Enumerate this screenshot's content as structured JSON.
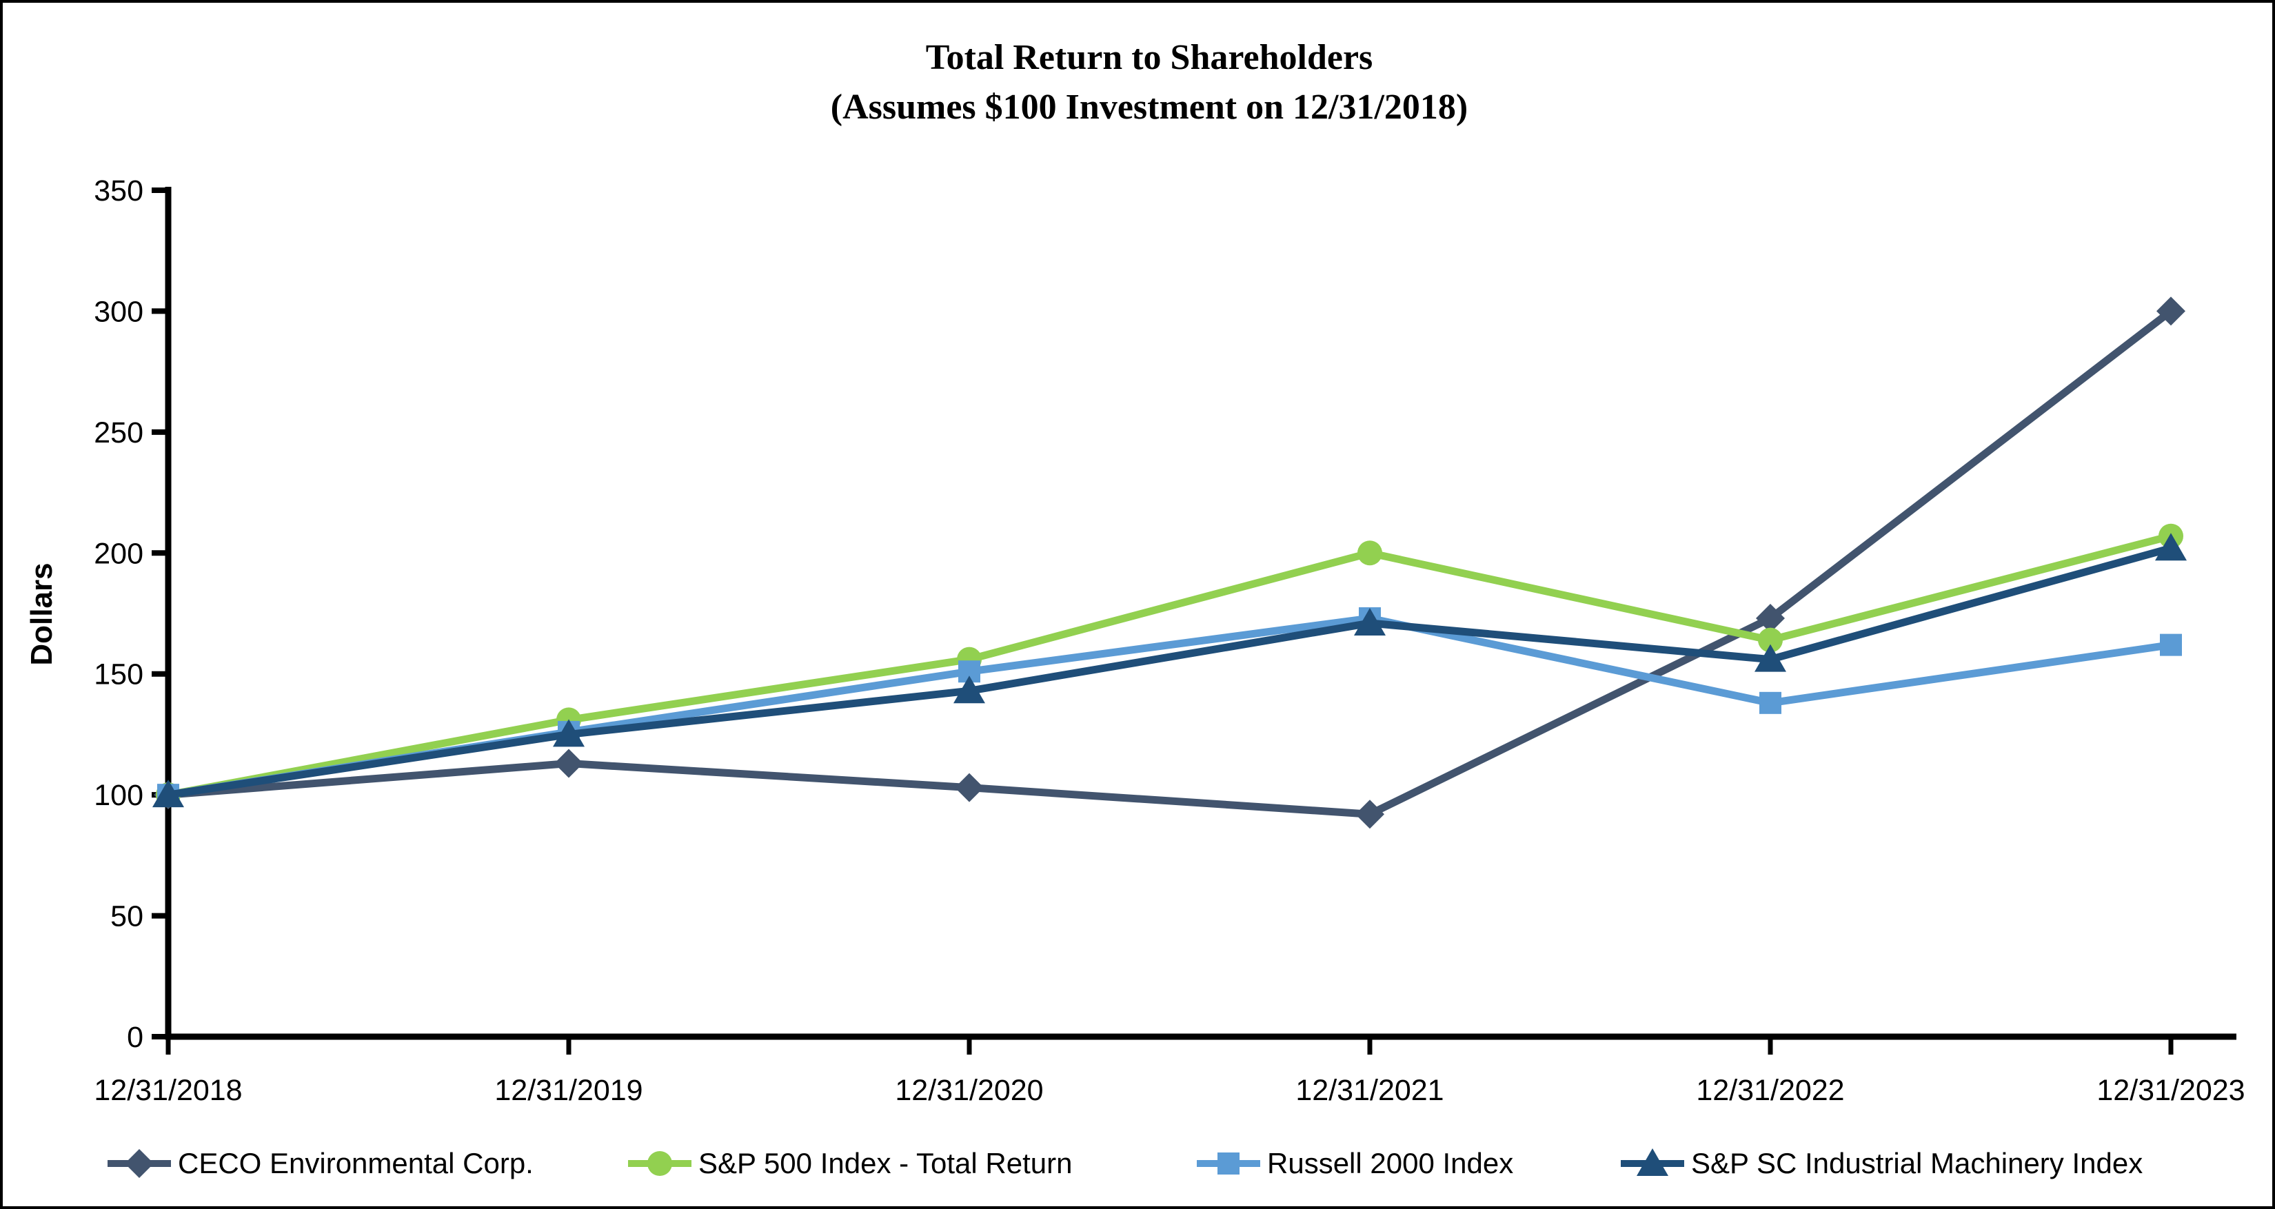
{
  "title": {
    "line1": "Total Return to Shareholders",
    "line2": "(Assumes $100 Investment on 12/31/2018)"
  },
  "chart_data": {
    "type": "line",
    "title": "Total Return to Shareholders (Assumes $100 Investment on 12/31/2018)",
    "xlabel": "",
    "ylabel": "Dollars",
    "ylim": [
      0,
      350
    ],
    "y_ticks": [
      0,
      50,
      100,
      150,
      200,
      250,
      300,
      350
    ],
    "grid": false,
    "legend_position": "bottom",
    "background_color": "#FFFFFF",
    "axis_color": "#000000",
    "categories": [
      "12/31/2018",
      "12/31/2019",
      "12/31/2020",
      "12/31/2021",
      "12/31/2022",
      "12/31/2023"
    ],
    "series": [
      {
        "name": "CECO Environmental Corp.",
        "color": "#42546E",
        "marker": "diamond",
        "values": [
          100,
          113,
          103,
          92,
          173,
          300
        ]
      },
      {
        "name": "S&P 500 Index - Total Return",
        "color": "#92D050",
        "marker": "circle",
        "values": [
          100,
          131,
          156,
          200,
          164,
          207
        ]
      },
      {
        "name": "Russell 2000 Index",
        "color": "#5B9BD5",
        "marker": "square",
        "values": [
          100,
          126,
          151,
          173,
          138,
          162
        ]
      },
      {
        "name": "S&P SC Industrial Machinery Index",
        "color": "#1F4E79",
        "marker": "triangle",
        "values": [
          100,
          125,
          143,
          171,
          156,
          202
        ]
      }
    ]
  }
}
